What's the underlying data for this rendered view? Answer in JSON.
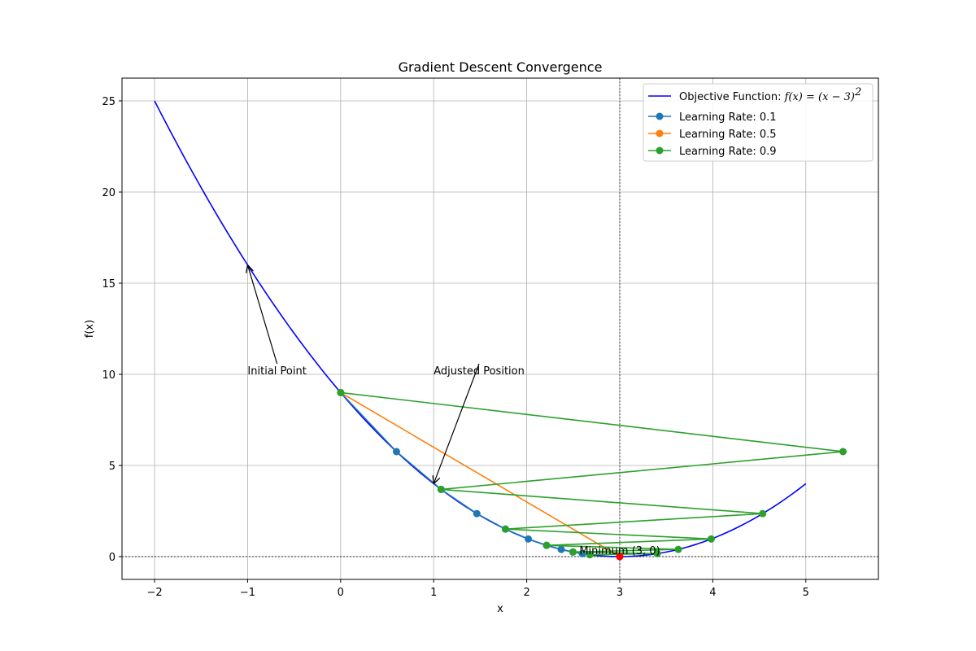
{
  "chart_data": {
    "type": "line",
    "title": "Gradient Descent Convergence",
    "xlabel": "x",
    "ylabel": "f(x)",
    "xlim": [
      -2.35,
      5.78
    ],
    "ylim": [
      -1.25,
      26.25
    ],
    "xticks": [
      -2,
      -1,
      0,
      1,
      2,
      3,
      4,
      5
    ],
    "xtick_labels": [
      "−2",
      "−1",
      "0",
      "1",
      "2",
      "3",
      "4",
      "5"
    ],
    "yticks": [
      0,
      5,
      10,
      15,
      20,
      25
    ],
    "ytick_labels": [
      "0",
      "5",
      "10",
      "15",
      "20",
      "25"
    ],
    "grid": true,
    "legend_position": "top-right",
    "objective": {
      "name_prefix": "Objective Function: ",
      "name_math": "f(x) = (x − 3)",
      "name_sup": "2",
      "x_range": [
        -2,
        5
      ],
      "color": "#0000ff"
    },
    "series": [
      {
        "name": "Learning Rate: 0.1",
        "color": "#1f77b4",
        "x": [
          0,
          0.6,
          1.08,
          1.464,
          1.7712,
          2.01696,
          2.21357,
          2.37085,
          2.49668,
          2.59735,
          2.67788
        ],
        "y": [
          9,
          5.76,
          3.6864,
          2.3593,
          1.51,
          0.9664,
          0.6185,
          0.3958,
          0.2533,
          0.1621,
          0.1038
        ]
      },
      {
        "name": "Learning Rate: 0.5",
        "color": "#ff7f0e",
        "x": [
          0,
          3
        ],
        "y": [
          9,
          0
        ]
      },
      {
        "name": "Learning Rate: 0.9",
        "color": "#2ca02c",
        "x": [
          0,
          5.4,
          1.08,
          4.536,
          1.7712,
          3.98304,
          2.21357,
          3.62915,
          2.49668,
          3.40265,
          2.67788
        ],
        "y": [
          9,
          5.76,
          3.6864,
          2.3593,
          1.51,
          0.9664,
          0.6185,
          0.3958,
          0.2533,
          0.1621,
          0.1038
        ]
      }
    ],
    "minimum_point": {
      "x": 3,
      "y": 0,
      "color": "#ff0000",
      "label": "Minimum (3, 0)"
    },
    "annotations": [
      {
        "text": "Initial Point",
        "text_at": [
          -1,
          10
        ],
        "arrow_to": [
          -1,
          16
        ]
      },
      {
        "text": "Adjusted Position",
        "text_at": [
          1,
          10
        ],
        "arrow_to": [
          1,
          4
        ]
      }
    ],
    "hline_y": 0,
    "vline_x": 3
  }
}
